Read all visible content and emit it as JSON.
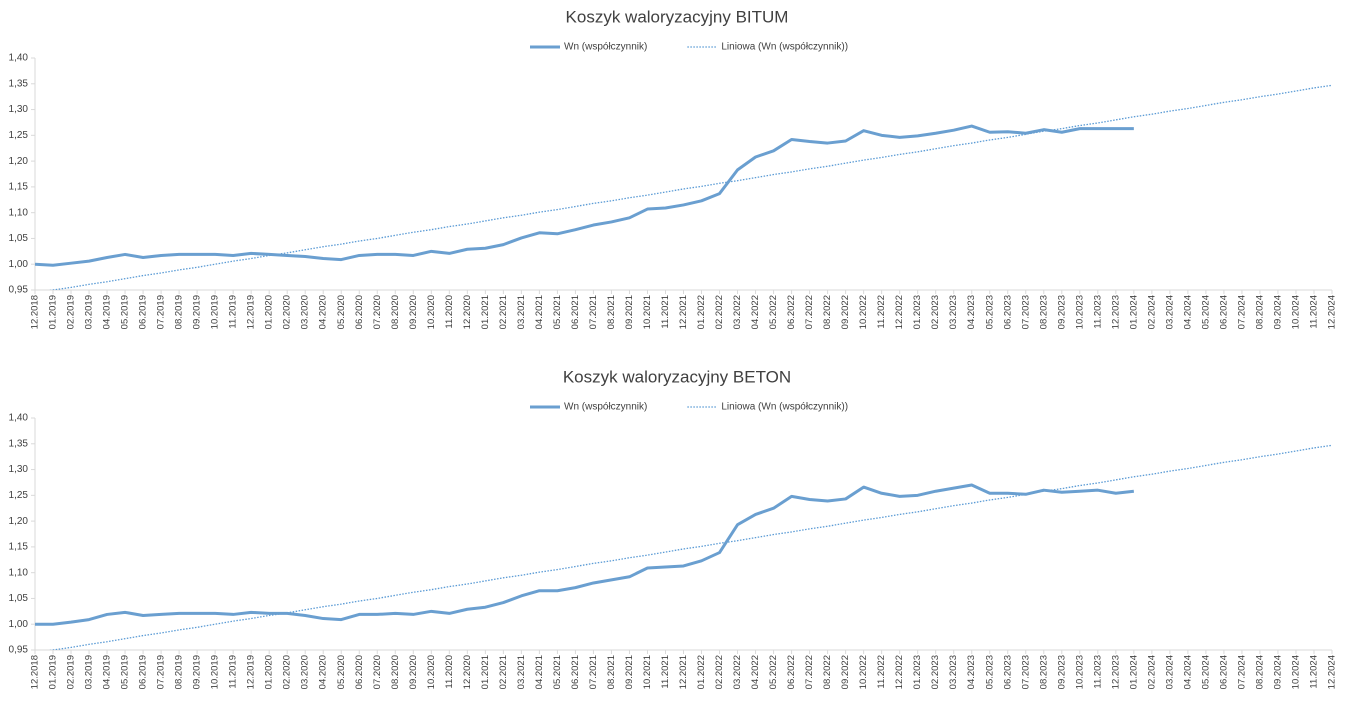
{
  "chart_data": [
    {
      "type": "line",
      "title": "Koszyk waloryzacyjny BITUM",
      "categories": [
        "12.2018",
        "01.2019",
        "02.2019",
        "03.2019",
        "04.2019",
        "05.2019",
        "06.2019",
        "07.2019",
        "08.2019",
        "09.2019",
        "10.2019",
        "11.2019",
        "12.2019",
        "01.2020",
        "02.2020",
        "03.2020",
        "04.2020",
        "05.2020",
        "06.2020",
        "07.2020",
        "08.2020",
        "09.2020",
        "10.2020",
        "11.2020",
        "12.2020",
        "01.2021",
        "02.2021",
        "03.2021",
        "04.2021",
        "05.2021",
        "06.2021",
        "07.2021",
        "08.2021",
        "09.2021",
        "10.2021",
        "11.2021",
        "12.2021",
        "01.2022",
        "02.2022",
        "03.2022",
        "04.2022",
        "05.2022",
        "06.2022",
        "07.2022",
        "08.2022",
        "09.2022",
        "10.2022",
        "11.2022",
        "12.2022",
        "01.2023",
        "02.2023",
        "03.2023",
        "04.2023",
        "05.2023",
        "06.2023",
        "07.2023",
        "08.2023",
        "09.2023",
        "10.2023",
        "11.2023",
        "12.2023",
        "01.2024",
        "02.2024",
        "03.2024",
        "04.2024",
        "05.2024",
        "06.2024",
        "07.2024",
        "08.2024",
        "09.2024",
        "10.2024",
        "11.2024",
        "12.2024"
      ],
      "series": [
        {
          "name": "Wn (współczynnik)",
          "color": "#6a9fd0",
          "style": "solid",
          "values": [
            1.0,
            0.998,
            1.002,
            1.006,
            1.013,
            1.019,
            1.013,
            1.017,
            1.019,
            1.019,
            1.019,
            1.017,
            1.021,
            1.019,
            1.017,
            1.015,
            1.011,
            1.009,
            1.017,
            1.019,
            1.019,
            1.017,
            1.025,
            1.021,
            1.029,
            1.031,
            1.038,
            1.051,
            1.061,
            1.059,
            1.067,
            1.076,
            1.082,
            1.09,
            1.107,
            1.109,
            1.115,
            1.123,
            1.137,
            1.183,
            1.208,
            1.22,
            1.242,
            1.238,
            1.235,
            1.239,
            1.259,
            1.25,
            1.246,
            1.249,
            1.254,
            1.26,
            1.268,
            1.256,
            1.257,
            1.254,
            1.261,
            1.256,
            1.263,
            1.263,
            1.263,
            1.263,
            null,
            null,
            null,
            null,
            null,
            null,
            null,
            null,
            null,
            null,
            null
          ]
        },
        {
          "name": "Liniowa (Wn (współczynnik))",
          "color": "#5b9bd5",
          "style": "dotted",
          "values": [
            0.944,
            0.95,
            0.955,
            0.961,
            0.966,
            0.972,
            0.978,
            0.983,
            0.989,
            0.994,
            1.0,
            1.006,
            1.011,
            1.017,
            1.022,
            1.028,
            1.034,
            1.039,
            1.045,
            1.05,
            1.056,
            1.062,
            1.067,
            1.073,
            1.078,
            1.084,
            1.09,
            1.095,
            1.101,
            1.106,
            1.112,
            1.118,
            1.123,
            1.129,
            1.134,
            1.14,
            1.146,
            1.151,
            1.157,
            1.162,
            1.168,
            1.174,
            1.179,
            1.185,
            1.19,
            1.196,
            1.202,
            1.207,
            1.213,
            1.218,
            1.224,
            1.23,
            1.235,
            1.241,
            1.246,
            1.252,
            1.258,
            1.263,
            1.269,
            1.274,
            1.28,
            1.286,
            1.291,
            1.297,
            1.302,
            1.308,
            1.314,
            1.319,
            1.325,
            1.33,
            1.336,
            1.342,
            1.347
          ]
        }
      ],
      "ylim": [
        0.95,
        1.4
      ],
      "yticks": [
        {
          "value": 0.95,
          "label": "0,95"
        },
        {
          "value": 1.0,
          "label": "1,00"
        },
        {
          "value": 1.05,
          "label": "1,05"
        },
        {
          "value": 1.1,
          "label": "1,10"
        },
        {
          "value": 1.15,
          "label": "1,15"
        },
        {
          "value": 1.2,
          "label": "1,20"
        },
        {
          "value": 1.25,
          "label": "1,25"
        },
        {
          "value": 1.3,
          "label": "1,30"
        },
        {
          "value": 1.35,
          "label": "1,35"
        },
        {
          "value": 1.4,
          "label": "1,40"
        }
      ],
      "legend": "top"
    },
    {
      "type": "line",
      "title": "Koszyk waloryzacyjny BETON",
      "categories": [
        "12.2018",
        "01.2019",
        "02.2019",
        "03.2019",
        "04.2019",
        "05.2019",
        "06.2019",
        "07.2019",
        "08.2019",
        "09.2019",
        "10.2019",
        "11.2019",
        "12.2019",
        "01.2020",
        "02.2020",
        "03.2020",
        "04.2020",
        "05.2020",
        "06.2020",
        "07.2020",
        "08.2020",
        "09.2020",
        "10.2020",
        "11.2020",
        "12.2020",
        "01.2021",
        "02.2021",
        "03.2021",
        "04.2021",
        "05.2021",
        "06.2021",
        "07.2021",
        "08.2021",
        "09.2021",
        "10.2021",
        "11.2021",
        "12.2021",
        "01.2022",
        "02.2022",
        "03.2022",
        "04.2022",
        "05.2022",
        "06.2022",
        "07.2022",
        "08.2022",
        "09.2022",
        "10.2022",
        "11.2022",
        "12.2022",
        "01.2023",
        "02.2023",
        "03.2023",
        "04.2023",
        "05.2023",
        "06.2023",
        "07.2023",
        "08.2023",
        "09.2023",
        "10.2023",
        "11.2023",
        "12.2023",
        "01.2024",
        "02.2024",
        "03.2024",
        "04.2024",
        "05.2024",
        "06.2024",
        "07.2024",
        "08.2024",
        "09.2024",
        "10.2024",
        "11.2024",
        "12.2024"
      ],
      "series": [
        {
          "name": "Wn (współczynnik)",
          "color": "#6a9fd0",
          "style": "solid",
          "values": [
            1.0,
            1.0,
            1.004,
            1.009,
            1.019,
            1.023,
            1.017,
            1.019,
            1.021,
            1.021,
            1.021,
            1.019,
            1.023,
            1.021,
            1.021,
            1.017,
            1.011,
            1.009,
            1.019,
            1.019,
            1.021,
            1.019,
            1.025,
            1.021,
            1.029,
            1.033,
            1.042,
            1.055,
            1.065,
            1.065,
            1.071,
            1.08,
            1.086,
            1.092,
            1.109,
            1.111,
            1.113,
            1.123,
            1.139,
            1.193,
            1.213,
            1.225,
            1.248,
            1.242,
            1.239,
            1.243,
            1.266,
            1.254,
            1.248,
            1.25,
            1.258,
            1.264,
            1.27,
            1.254,
            1.254,
            1.252,
            1.26,
            1.256,
            1.258,
            1.26,
            1.254,
            1.258,
            null,
            null,
            null,
            null,
            null,
            null,
            null,
            null,
            null,
            null,
            null
          ]
        },
        {
          "name": "Liniowa (Wn (współczynnik))",
          "color": "#5b9bd5",
          "style": "dotted",
          "values": [
            0.944,
            0.95,
            0.955,
            0.961,
            0.966,
            0.972,
            0.978,
            0.983,
            0.989,
            0.994,
            1.0,
            1.006,
            1.011,
            1.017,
            1.022,
            1.028,
            1.034,
            1.039,
            1.045,
            1.05,
            1.056,
            1.062,
            1.067,
            1.073,
            1.078,
            1.084,
            1.09,
            1.095,
            1.101,
            1.106,
            1.112,
            1.118,
            1.123,
            1.129,
            1.134,
            1.14,
            1.146,
            1.151,
            1.157,
            1.162,
            1.168,
            1.174,
            1.179,
            1.185,
            1.19,
            1.196,
            1.202,
            1.207,
            1.213,
            1.218,
            1.224,
            1.23,
            1.235,
            1.241,
            1.246,
            1.252,
            1.258,
            1.263,
            1.269,
            1.274,
            1.28,
            1.286,
            1.291,
            1.297,
            1.302,
            1.308,
            1.314,
            1.319,
            1.325,
            1.33,
            1.336,
            1.342,
            1.347
          ]
        }
      ],
      "ylim": [
        0.95,
        1.4
      ],
      "yticks": [
        {
          "value": 0.95,
          "label": "0,95"
        },
        {
          "value": 1.0,
          "label": "1,00"
        },
        {
          "value": 1.05,
          "label": "1,05"
        },
        {
          "value": 1.1,
          "label": "1,10"
        },
        {
          "value": 1.15,
          "label": "1,15"
        },
        {
          "value": 1.2,
          "label": "1,20"
        },
        {
          "value": 1.25,
          "label": "1,25"
        },
        {
          "value": 1.3,
          "label": "1,30"
        },
        {
          "value": 1.35,
          "label": "1,35"
        },
        {
          "value": 1.4,
          "label": "1,40"
        }
      ],
      "legend": "top"
    }
  ]
}
